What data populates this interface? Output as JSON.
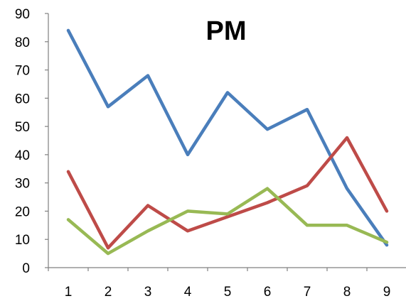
{
  "chart_data": {
    "type": "line",
    "title": "PM",
    "xlabel": "",
    "ylabel": "",
    "categories": [
      "1",
      "2",
      "3",
      "4",
      "5",
      "6",
      "7",
      "8",
      "9"
    ],
    "ylim": [
      0,
      90
    ],
    "yticks": [
      0,
      10,
      20,
      30,
      40,
      50,
      60,
      70,
      80,
      90
    ],
    "grid": false,
    "legend": "none",
    "series": [
      {
        "color": "#4a7ebb",
        "values": [
          84,
          57,
          68,
          40,
          62,
          49,
          56,
          28,
          8
        ]
      },
      {
        "color": "#be4b48",
        "values": [
          34,
          7,
          22,
          13,
          18,
          23,
          29,
          46,
          20
        ]
      },
      {
        "color": "#98b954",
        "values": [
          17,
          5,
          13,
          20,
          19,
          28,
          15,
          15,
          9
        ]
      }
    ]
  }
}
